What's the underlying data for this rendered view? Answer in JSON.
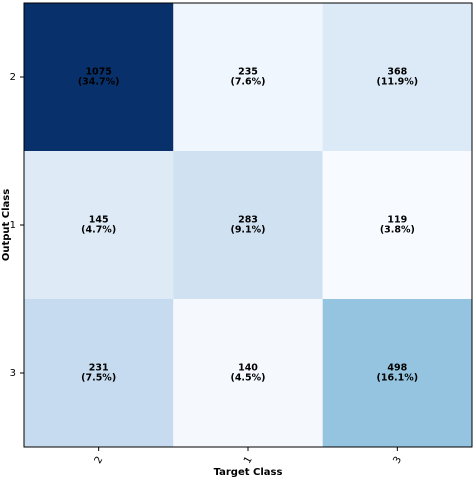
{
  "chart_data": {
    "type": "heatmap",
    "x_label": "Target Class",
    "y_label": "Output Class",
    "columns": [
      "2",
      "1",
      "3"
    ],
    "rows": [
      "2",
      "1",
      "3"
    ],
    "values": [
      [
        1075,
        235,
        368
      ],
      [
        145,
        283,
        119
      ],
      [
        231,
        140,
        498
      ]
    ],
    "percents": [
      [
        34.7,
        7.6,
        11.9
      ],
      [
        4.7,
        9.1,
        3.8
      ],
      [
        7.5,
        4.5,
        16.1
      ]
    ],
    "percent_labels": [
      [
        "(34.7%)",
        "(7.6%)",
        "(11.9%)"
      ],
      [
        "(4.7%)",
        "(9.1%)",
        "(3.8%)"
      ],
      [
        "(7.5%)",
        "(4.5%)",
        "(16.1%)"
      ]
    ],
    "colors": [
      [
        "#08306b",
        "#f0f6fd",
        "#dce9f6"
      ],
      [
        "#deebf7",
        "#d0e2f2",
        "#f7fbff"
      ],
      [
        "#c6dbef",
        "#f5f9fe",
        "#94c4df"
      ]
    ],
    "dark_cells": [
      [
        true,
        false,
        false
      ],
      [
        false,
        false,
        false
      ],
      [
        false,
        false,
        false
      ]
    ]
  }
}
